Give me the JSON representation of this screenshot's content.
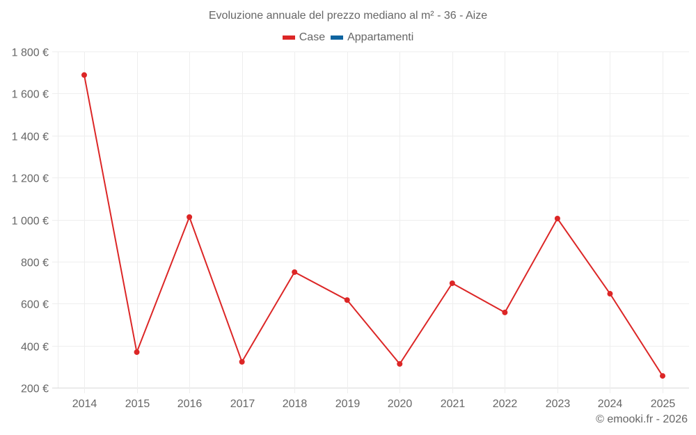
{
  "title": "Evoluzione annuale del prezzo mediano al m² - 36 - Aize",
  "legend": [
    {
      "label": "Case",
      "color": "#dc2626"
    },
    {
      "label": "Appartamenti",
      "color": "#0e64a0"
    }
  ],
  "footer": "© emooki.fr - 2026",
  "chart_data": {
    "type": "line",
    "title": "Evoluzione annuale del prezzo mediano al m² - 36 - Aize",
    "xlabel": "",
    "ylabel": "",
    "categories": [
      "2014",
      "2015",
      "2016",
      "2017",
      "2018",
      "2019",
      "2020",
      "2021",
      "2022",
      "2023",
      "2024",
      "2025"
    ],
    "series": [
      {
        "name": "Case",
        "color": "#dc2626",
        "values": [
          1688,
          369,
          1012,
          323,
          750,
          617,
          313,
          697,
          558,
          1005,
          647,
          256
        ]
      },
      {
        "name": "Appartamenti",
        "color": "#0e64a0",
        "values": []
      }
    ],
    "ylim": [
      200,
      1800
    ],
    "yticks": [
      200,
      400,
      600,
      800,
      1000,
      1200,
      1400,
      1600,
      1800
    ],
    "ytick_labels": [
      "200 €",
      "400 €",
      "600 €",
      "800 €",
      "1 000 €",
      "1 200 €",
      "1 400 €",
      "1 600 €",
      "1 800 €"
    ],
    "grid": true,
    "legend_position": "top"
  }
}
